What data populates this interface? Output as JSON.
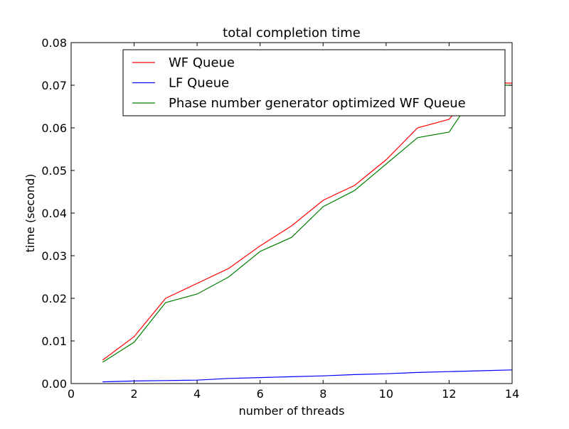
{
  "chart_data": {
    "type": "line",
    "title": "total completion time",
    "xlabel": "number of threads",
    "ylabel": "time (second)",
    "xlim": [
      0,
      14
    ],
    "ylim": [
      0,
      0.08
    ],
    "xticks": [
      0,
      2,
      4,
      6,
      8,
      10,
      12,
      14
    ],
    "yticks": [
      0.0,
      0.01,
      0.02,
      0.03,
      0.04,
      0.05,
      0.06,
      0.07,
      0.08
    ],
    "xtick_labels": [
      "0",
      "2",
      "4",
      "6",
      "8",
      "10",
      "12",
      "14"
    ],
    "ytick_labels": [
      "0.00",
      "0.01",
      "0.02",
      "0.03",
      "0.04",
      "0.05",
      "0.06",
      "0.07",
      "0.08"
    ],
    "grid": false,
    "legend_position": "top-right",
    "x": [
      1,
      2,
      3,
      4,
      5,
      6,
      7,
      8,
      9,
      10,
      11,
      12,
      13,
      14
    ],
    "series": [
      {
        "name": "WF Queue",
        "color": "#ff0000",
        "values": [
          0.0055,
          0.011,
          0.02,
          0.0235,
          0.027,
          0.0323,
          0.037,
          0.043,
          0.0465,
          0.0525,
          0.06,
          0.062,
          0.0705,
          0.0705
        ]
      },
      {
        "name": "LF Queue",
        "color": "#0000ff",
        "values": [
          0.0004,
          0.0006,
          0.0007,
          0.0008,
          0.0012,
          0.0014,
          0.0016,
          0.0018,
          0.0021,
          0.0023,
          0.0026,
          0.0028,
          0.003,
          0.0032
        ]
      },
      {
        "name": "Phase number generator optimized WF Queue",
        "color": "#008000",
        "values": [
          0.005,
          0.0097,
          0.019,
          0.021,
          0.025,
          0.031,
          0.0343,
          0.0415,
          0.0453,
          0.0515,
          0.0577,
          0.059,
          0.07,
          0.07
        ]
      }
    ]
  }
}
